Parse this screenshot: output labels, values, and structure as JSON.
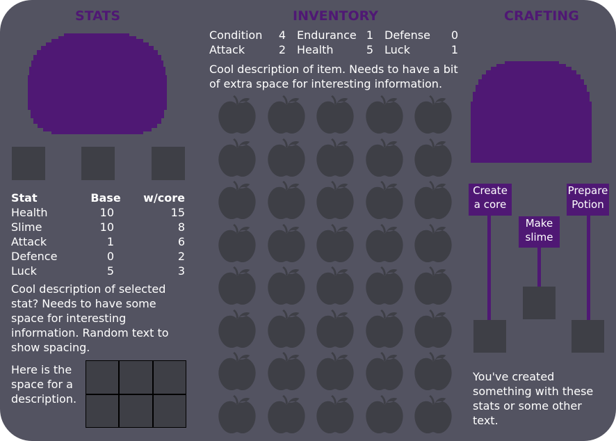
{
  "colors": {
    "panel": "#535361",
    "accent": "#4f1874",
    "slot": "#3e3f46",
    "apple": "#3e3f46",
    "text": "#ffffff"
  },
  "stats": {
    "title": "STATS",
    "table": {
      "headers": [
        "Stat",
        "Base",
        "w/core"
      ],
      "rows": [
        [
          "Health",
          "10",
          "15"
        ],
        [
          "Slime",
          "10",
          "8"
        ],
        [
          "Attack",
          "1",
          "6"
        ],
        [
          "Defence",
          "0",
          "2"
        ],
        [
          "Luck",
          "5",
          "3"
        ]
      ]
    },
    "description": "Cool description of selected stat? Needs to have some space for interesting information. Random text to show spacing.",
    "slot_description": "Here is the space for a description."
  },
  "inventory": {
    "title": "INVENTORY",
    "item_stats": [
      [
        {
          "name": "Condition",
          "value": "4"
        },
        {
          "name": "Endurance",
          "value": "1"
        },
        {
          "name": "Defense",
          "value": "0"
        }
      ],
      [
        {
          "name": "Attack",
          "value": "2"
        },
        {
          "name": "Health",
          "value": "5"
        },
        {
          "name": "Luck",
          "value": "1"
        }
      ]
    ],
    "item_description": "Cool description of item. Needs to have a bit of extra space for interesting information.",
    "slot_icon": "apple-icon",
    "rows": 8,
    "cols": 5
  },
  "crafting": {
    "title": "CRAFTING",
    "buttons": {
      "create_core": [
        "Create",
        "a core"
      ],
      "make_slime": [
        "Make",
        "slime"
      ],
      "prepare_potion": [
        "Prepare",
        "Potion"
      ]
    },
    "result_text": "You've created something with these stats or some other text."
  }
}
